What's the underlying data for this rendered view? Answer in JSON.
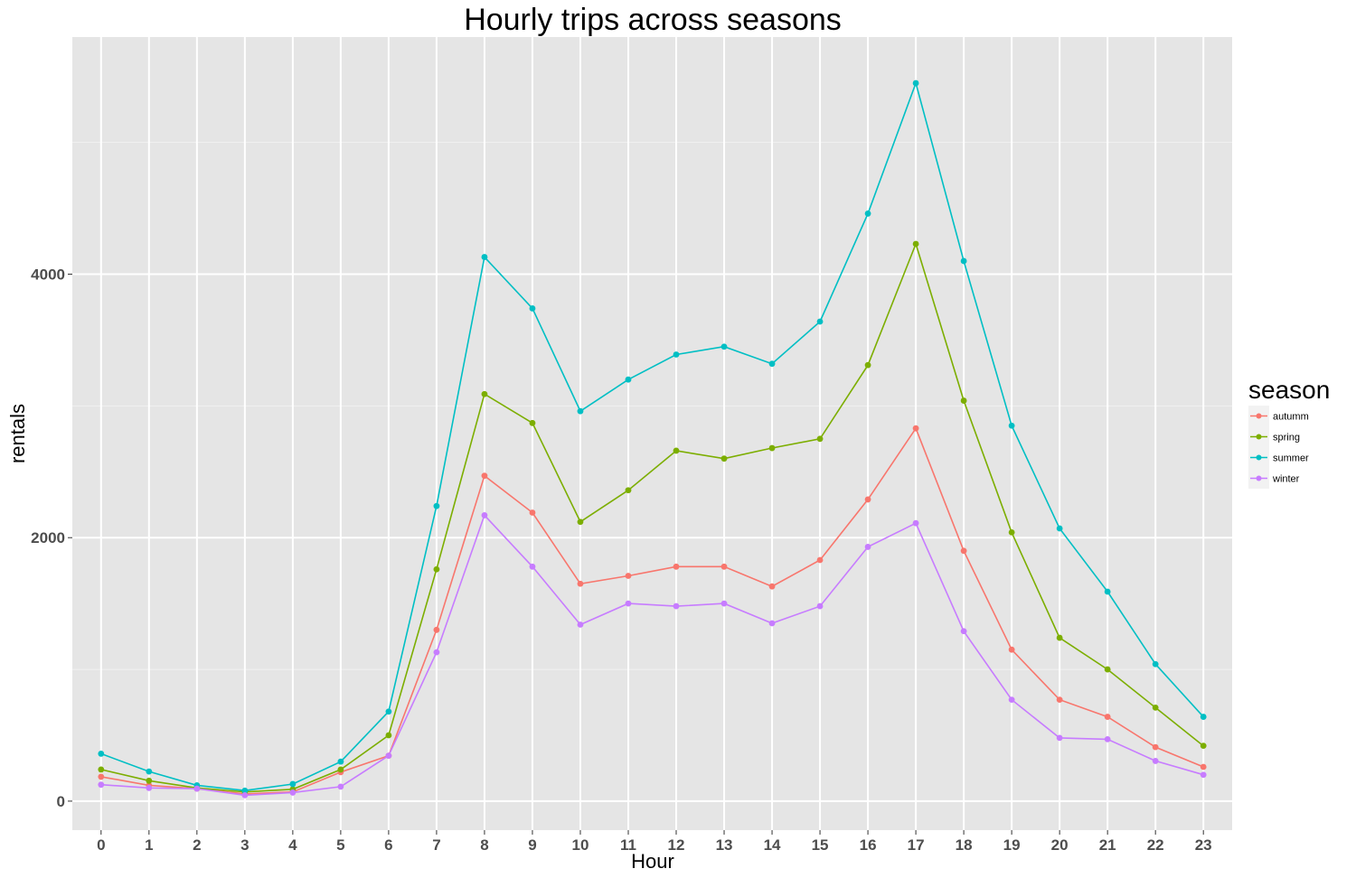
{
  "chart_data": {
    "type": "line",
    "title": "Hourly trips across seasons",
    "xlabel": "Hour",
    "ylabel": "rentals",
    "x": [
      0,
      1,
      2,
      3,
      4,
      5,
      6,
      7,
      8,
      9,
      10,
      11,
      12,
      13,
      14,
      15,
      16,
      17,
      18,
      19,
      20,
      21,
      22,
      23
    ],
    "x_tick_labels": [
      "0",
      "1",
      "2",
      "3",
      "4",
      "5",
      "6",
      "7",
      "8",
      "9",
      "10",
      "11",
      "12",
      "13",
      "14",
      "15",
      "16",
      "17",
      "18",
      "19",
      "20",
      "21",
      "22",
      "23"
    ],
    "y_ticks": [
      0,
      2000,
      4000
    ],
    "y_tick_labels": [
      "0",
      "2000",
      "4000"
    ],
    "ylim": [
      -220,
      5800
    ],
    "xlim": [
      -0.6,
      23.6
    ],
    "grid": true,
    "legend": {
      "title": "season",
      "placement": "right"
    },
    "series": [
      {
        "name": "autumm",
        "color": "#F8766D",
        "values": [
          185,
          120,
          95,
          55,
          70,
          220,
          345,
          1300,
          2470,
          2190,
          1650,
          1710,
          1780,
          1780,
          1630,
          1830,
          2290,
          2830,
          1900,
          1150,
          770,
          640,
          410,
          260
        ]
      },
      {
        "name": "spring",
        "color": "#7CAE00",
        "values": [
          240,
          155,
          100,
          70,
          90,
          240,
          500,
          1760,
          3090,
          2870,
          2120,
          2360,
          2660,
          2600,
          2680,
          2750,
          3310,
          4230,
          3040,
          2040,
          1240,
          1000,
          710,
          420
        ]
      },
      {
        "name": "summer",
        "color": "#00BFC4",
        "values": [
          360,
          225,
          120,
          80,
          130,
          300,
          680,
          2240,
          4130,
          3740,
          2960,
          3200,
          3390,
          3450,
          3320,
          3640,
          4460,
          5450,
          4100,
          2850,
          2070,
          1590,
          1040,
          640
        ]
      },
      {
        "name": "winter",
        "color": "#C77CFF",
        "values": [
          125,
          100,
          95,
          45,
          65,
          110,
          345,
          1130,
          2170,
          1780,
          1340,
          1500,
          1480,
          1500,
          1350,
          1480,
          1930,
          2110,
          1290,
          770,
          480,
          470,
          305,
          200
        ]
      }
    ]
  }
}
